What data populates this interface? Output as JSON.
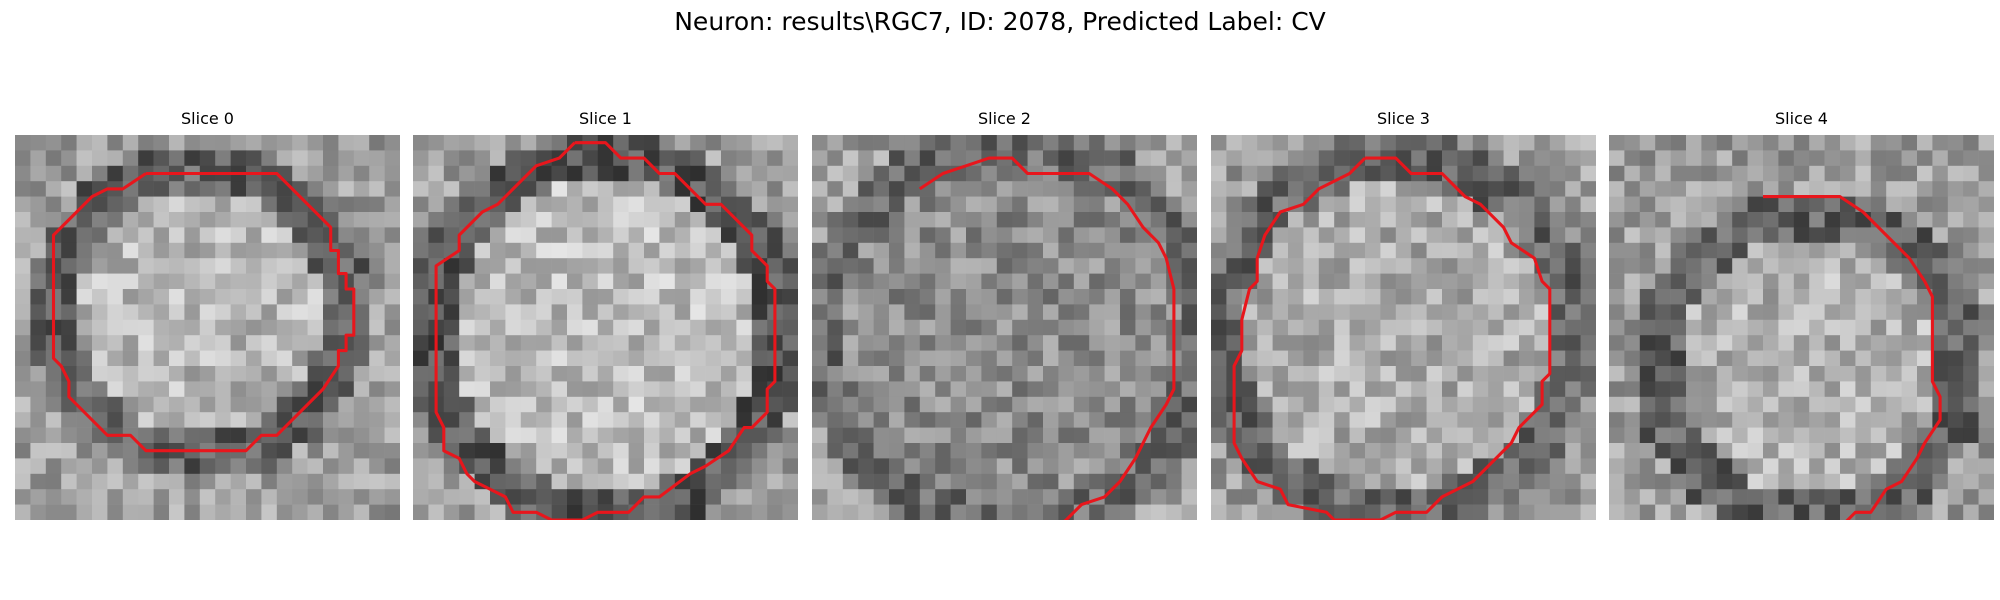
{
  "figure": {
    "title": "Neuron: results\\RGC7, ID: 2078, Predicted Label: CV"
  },
  "slices": [
    {
      "title": "Slice 0",
      "contour": [
        [
          8.5,
          2.5
        ],
        [
          17,
          2.5
        ],
        [
          20.5,
          6
        ],
        [
          20.5,
          7.5
        ],
        [
          21,
          7.5
        ],
        [
          21,
          9
        ],
        [
          21.5,
          9
        ],
        [
          21.5,
          10
        ],
        [
          22,
          10
        ],
        [
          22,
          13
        ],
        [
          21.5,
          13
        ],
        [
          21.5,
          14
        ],
        [
          21,
          14
        ],
        [
          21,
          15
        ],
        [
          20,
          16.5
        ],
        [
          19,
          17.5
        ],
        [
          17,
          19.5
        ],
        [
          16,
          19.5
        ],
        [
          15,
          20.5
        ],
        [
          8.5,
          20.5
        ],
        [
          7.5,
          19.5
        ],
        [
          6,
          19.5
        ],
        [
          3.5,
          17
        ],
        [
          3.5,
          16
        ],
        [
          3,
          15
        ],
        [
          2.5,
          14.5
        ],
        [
          2.5,
          6.5
        ],
        [
          5,
          4
        ],
        [
          6,
          3.5
        ],
        [
          7,
          3.5
        ],
        [
          8.5,
          2.5
        ]
      ]
    },
    {
      "title": "Slice 1",
      "contour": [
        [
          10.5,
          0.5
        ],
        [
          12.5,
          0.5
        ],
        [
          13.5,
          1.5
        ],
        [
          15,
          1.5
        ],
        [
          16,
          2.5
        ],
        [
          17,
          2.5
        ],
        [
          19,
          4.5
        ],
        [
          20,
          4.5
        ],
        [
          22,
          6.5
        ],
        [
          22,
          7.5
        ],
        [
          23,
          8.5
        ],
        [
          23,
          9.5
        ],
        [
          23.5,
          10
        ],
        [
          23.5,
          16
        ],
        [
          23,
          16.5
        ],
        [
          23,
          18
        ],
        [
          22,
          19
        ],
        [
          21.5,
          19
        ],
        [
          20.5,
          20.5
        ],
        [
          19,
          21.5
        ],
        [
          18,
          22
        ],
        [
          16,
          23.5
        ],
        [
          15,
          23.5
        ],
        [
          14,
          24.5
        ],
        [
          12,
          24.5
        ],
        [
          11,
          25
        ],
        [
          9,
          25
        ],
        [
          8,
          24.5
        ],
        [
          6.5,
          24.5
        ],
        [
          6,
          23.5
        ],
        [
          4,
          22.5
        ],
        [
          3.5,
          22
        ],
        [
          3,
          21
        ],
        [
          2,
          20.5
        ],
        [
          2,
          19
        ],
        [
          1.5,
          18
        ],
        [
          1.5,
          11
        ],
        [
          1.5,
          8.5
        ],
        [
          3,
          7.5
        ],
        [
          3,
          6.5
        ],
        [
          4.5,
          5
        ],
        [
          5.5,
          4.5
        ],
        [
          6.5,
          3.5
        ],
        [
          8,
          2
        ],
        [
          9.5,
          1.5
        ],
        [
          10.5,
          0.5
        ]
      ]
    },
    {
      "title": "Slice 2",
      "contour": [
        [
          7,
          3.5
        ],
        [
          8.5,
          2.5
        ],
        [
          10,
          2
        ],
        [
          11.5,
          1.5
        ],
        [
          13,
          1.5
        ],
        [
          14,
          2.5
        ],
        [
          18,
          2.5
        ],
        [
          19.5,
          3.5
        ],
        [
          20.5,
          4.5
        ],
        [
          21.5,
          6
        ],
        [
          22.5,
          7
        ],
        [
          23,
          8
        ],
        [
          23.5,
          10
        ],
        [
          23.5,
          16.5
        ],
        [
          23,
          17.5
        ],
        [
          22,
          19
        ],
        [
          21,
          21
        ],
        [
          20,
          22.5
        ],
        [
          19,
          23.5
        ],
        [
          17.5,
          24
        ],
        [
          16.5,
          25
        ],
        [
          14.5,
          26.5
        ],
        [
          14.2,
          26.9
        ]
      ]
    },
    {
      "title": "Slice 3",
      "contour": [
        [
          10,
          1.5
        ],
        [
          12,
          1.5
        ],
        [
          13,
          2.5
        ],
        [
          15,
          2.5
        ],
        [
          16.5,
          4
        ],
        [
          17.5,
          4.5
        ],
        [
          19,
          6
        ],
        [
          19.5,
          7
        ],
        [
          21,
          8
        ],
        [
          21.5,
          9.5
        ],
        [
          22,
          10
        ],
        [
          22,
          15.5
        ],
        [
          21.5,
          16
        ],
        [
          21.5,
          17.5
        ],
        [
          20,
          19
        ],
        [
          19.5,
          20
        ],
        [
          18,
          21.5
        ],
        [
          17,
          22.5
        ],
        [
          15,
          23.5
        ],
        [
          14,
          24.5
        ],
        [
          12,
          24.5
        ],
        [
          11,
          25
        ],
        [
          8,
          25
        ],
        [
          7.5,
          24.5
        ],
        [
          5,
          24
        ],
        [
          4.5,
          23
        ],
        [
          3,
          22.5
        ],
        [
          2,
          21
        ],
        [
          1.5,
          20
        ],
        [
          1.5,
          18
        ],
        [
          1.5,
          15
        ],
        [
          2,
          14
        ],
        [
          2,
          12
        ],
        [
          2.5,
          10
        ],
        [
          3,
          9.5
        ],
        [
          3,
          8
        ],
        [
          3.5,
          6.5
        ],
        [
          4.5,
          5
        ],
        [
          6,
          4.5
        ],
        [
          7,
          3.5
        ],
        [
          9,
          2.5
        ],
        [
          10,
          1.5
        ]
      ]
    },
    {
      "title": "Slice 4",
      "contour": [
        [
          10,
          4
        ],
        [
          15,
          4
        ],
        [
          16.5,
          5
        ],
        [
          18,
          6.5
        ],
        [
          19.5,
          8
        ],
        [
          20.5,
          9.5
        ],
        [
          21,
          10.5
        ],
        [
          21,
          16
        ],
        [
          21.5,
          17
        ],
        [
          21.5,
          18.5
        ],
        [
          20.5,
          20
        ],
        [
          20,
          21
        ],
        [
          19,
          22.5
        ],
        [
          18,
          23
        ],
        [
          17,
          24.5
        ],
        [
          16,
          24.5
        ],
        [
          15,
          25.5
        ],
        [
          14.2,
          26.2
        ]
      ]
    }
  ]
}
